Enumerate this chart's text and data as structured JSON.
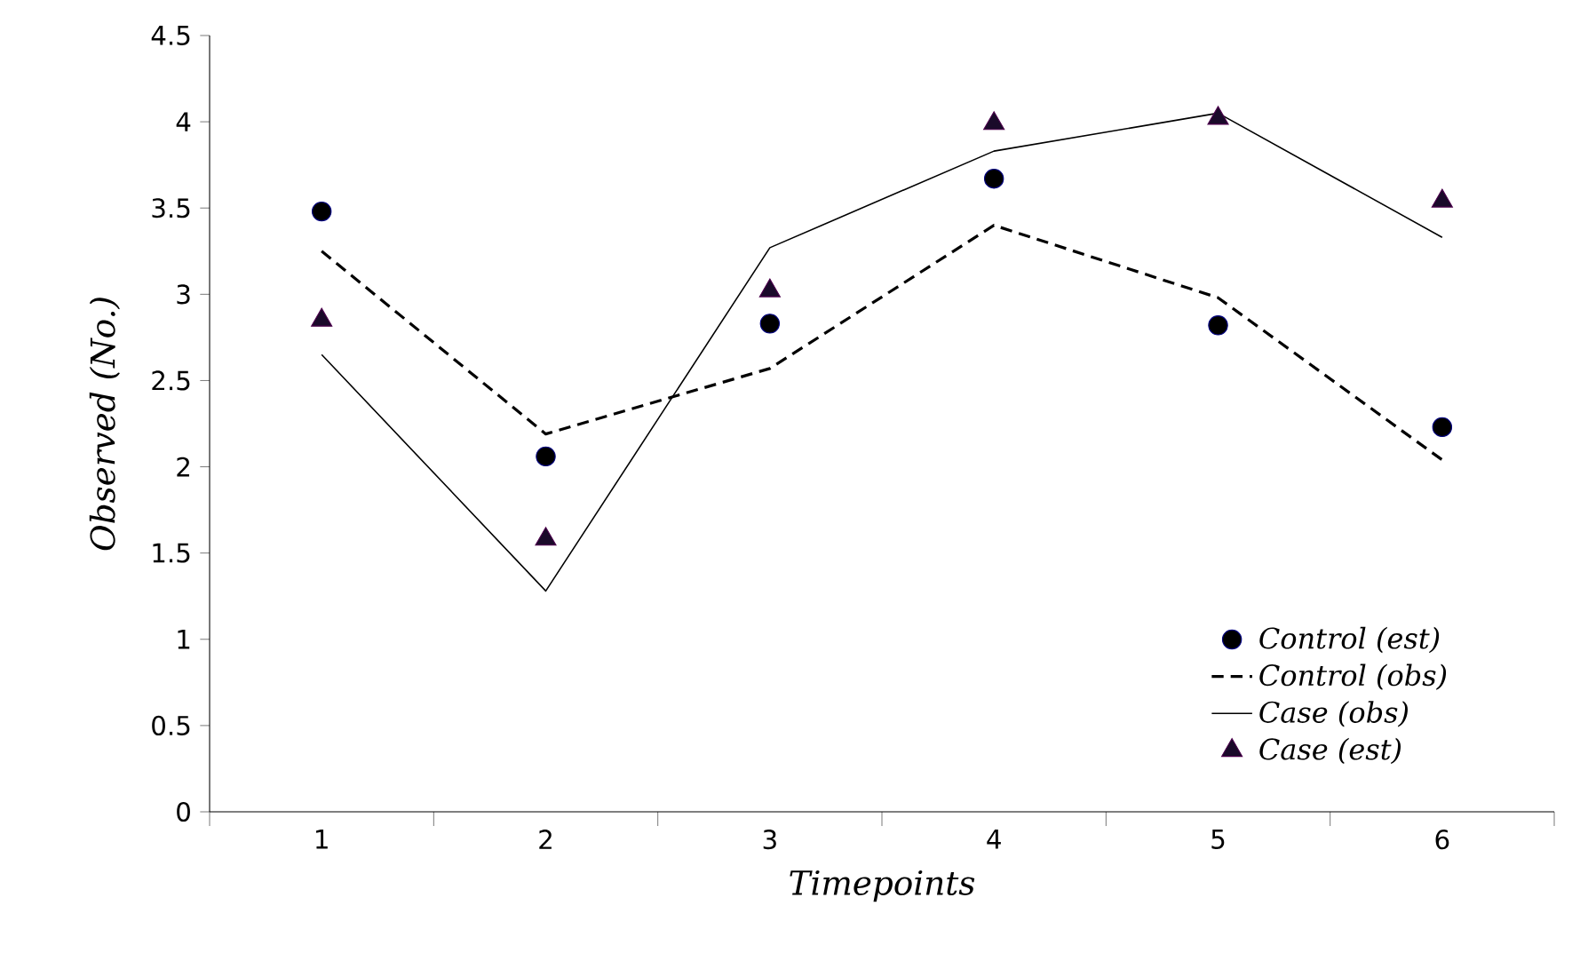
{
  "chart_data": {
    "type": "line",
    "xlabel": "Timepoints",
    "ylabel": "Observed (No.)",
    "categories": [
      "1",
      "2",
      "3",
      "4",
      "5",
      "6"
    ],
    "ylim": [
      0,
      4.5
    ],
    "yticks": [
      0,
      0.5,
      1,
      1.5,
      2,
      2.5,
      3,
      3.5,
      4,
      4.5
    ],
    "grid": false,
    "legend": "bottom right",
    "series": [
      {
        "name": "Control (est)",
        "type": "scatter",
        "marker": "circle",
        "color": "#000000",
        "values": [
          3.48,
          2.06,
          2.83,
          3.67,
          2.82,
          2.23
        ]
      },
      {
        "name": "Control (obs)",
        "marker": "none",
        "line_style": "dashed",
        "color": "#000000",
        "values": [
          3.25,
          2.19,
          2.57,
          3.4,
          2.98,
          2.04
        ]
      },
      {
        "name": "Case (obs)",
        "marker": "none",
        "line_style": "solid",
        "color": "#000000",
        "values": [
          2.65,
          1.28,
          3.27,
          3.83,
          4.05,
          3.33
        ]
      },
      {
        "name": "Case (est)",
        "type": "scatter",
        "marker": "triangle",
        "color": "#1a0a2a",
        "values": [
          2.85,
          1.58,
          3.02,
          3.99,
          4.02,
          3.54
        ]
      }
    ]
  }
}
